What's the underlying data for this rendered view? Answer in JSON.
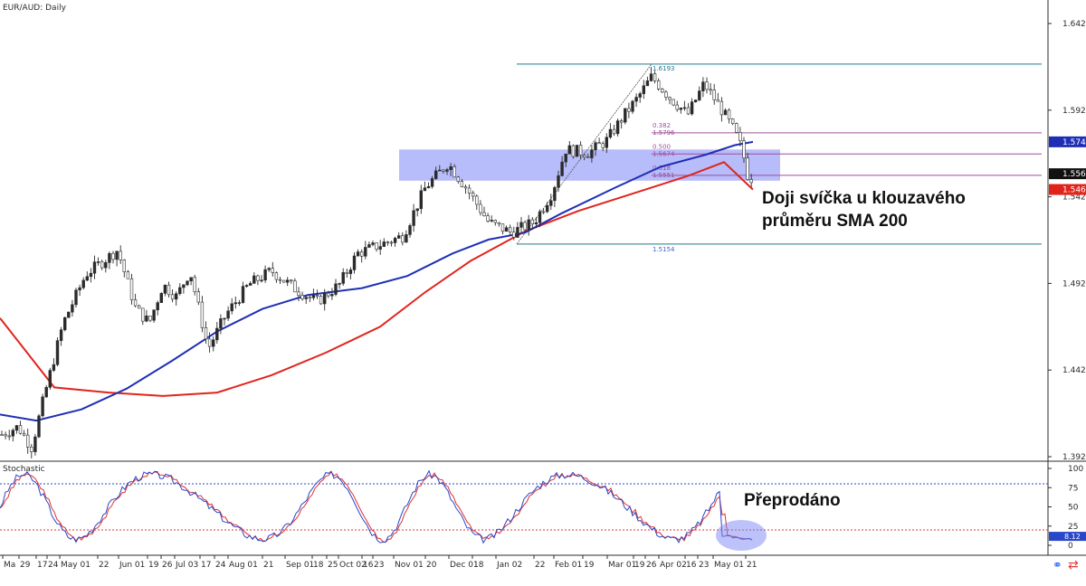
{
  "chart_data": {
    "type": "candlestick",
    "symbol_label": "EUR/AUD: Daily",
    "price_axis": {
      "min": 1.3927,
      "max": 1.6427,
      "ticks": [
        "1.6427",
        "1.5927",
        "1.5427",
        "1.4927",
        "1.4427",
        "1.3927"
      ]
    },
    "time_labels": [
      "Ma",
      "29",
      "17",
      "24",
      "May 01",
      "22",
      "Jun 01",
      "19",
      "26",
      "Jul 03",
      "17",
      "24",
      "Aug 01",
      "21",
      "Sep 01",
      "18",
      "25",
      "Oct 02",
      "16",
      "23",
      "Nov 01",
      "20",
      "Dec 01",
      "18",
      "Jan 02",
      "22",
      "Feb 01",
      "19",
      "Mar 01",
      "19",
      "26",
      "Apr 02",
      "16",
      "23",
      "May 01",
      "21"
    ],
    "price_tags": {
      "sma100_value": "1.5744",
      "close_value": "1.5560",
      "sma200_value": "1.5469"
    },
    "colors": {
      "up": "#26a69a",
      "down": "#ef5350",
      "candle": "#2b2b2b",
      "sma100": "#1f2fb5",
      "sma200": "#e0241b",
      "fib_top": "#1f7a8c",
      "fib_levels": "#9c4f9c",
      "zone": "#7c85f5"
    },
    "fibonacci": {
      "swing_low": "1.5154",
      "swing_high": "1.6193",
      "levels": [
        {
          "ratio": "0.382",
          "price": "1.5796"
        },
        {
          "ratio": "0.500",
          "price": "1.5674"
        },
        {
          "ratio": "0.618",
          "price": "1.5551"
        }
      ]
    },
    "support_zone": {
      "from": 1.552,
      "to": 1.57
    },
    "annotations": {
      "doji": "Doji svíčka u klouzavého průměru SMA 200",
      "doji_line1": "Doji svíčka u klouzavého",
      "doji_line2": "průměru SMA 200",
      "oversold": "Přeprodáno"
    },
    "stochastic": {
      "label": "Stochastic",
      "axis_ticks": [
        "100",
        "75",
        "50",
        "25",
        "0"
      ],
      "upper_level": 80,
      "lower_level": 20,
      "value_label": "8.12",
      "colors": {
        "k": "#2947c9",
        "d": "#e03131"
      }
    }
  }
}
